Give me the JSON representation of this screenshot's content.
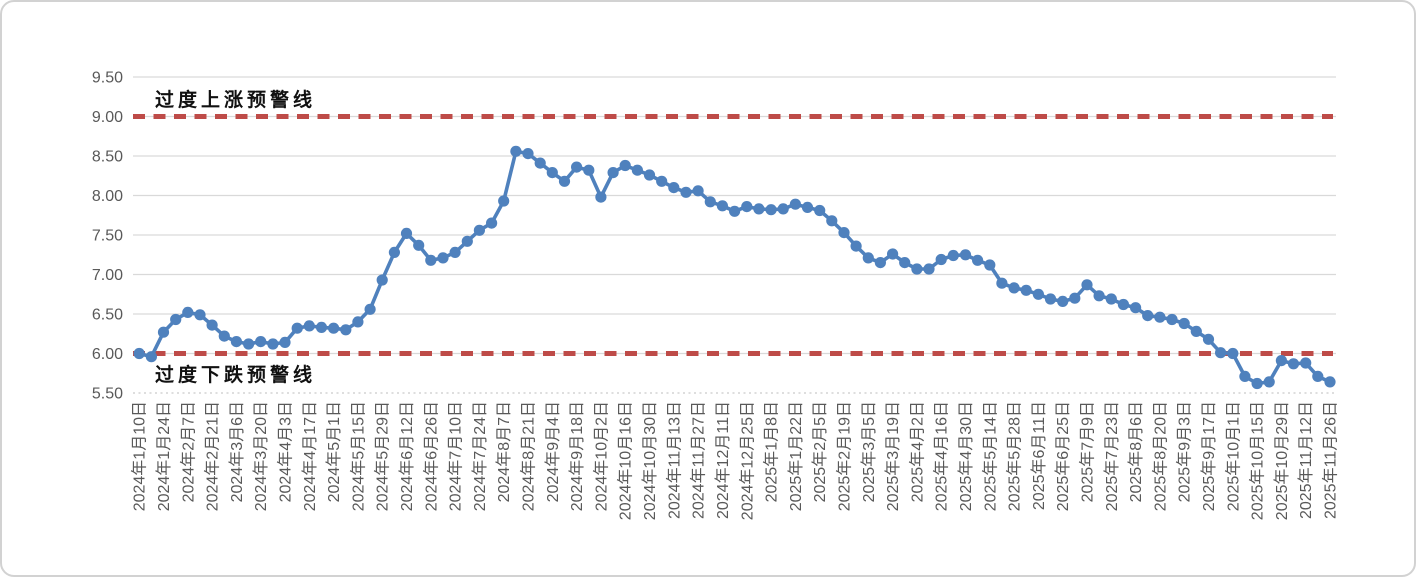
{
  "chart_data": {
    "type": "line",
    "title": "",
    "x_tick_labels": [
      "2024年1月10日",
      "2024年1月24日",
      "2024年2月7日",
      "2024年2月21日",
      "2024年3月6日",
      "2024年3月20日",
      "2024年4月3日",
      "2024年4月17日",
      "2024年5月1日",
      "2024年5月15日",
      "2024年5月29日",
      "2024年6月12日",
      "2024年6月26日",
      "2024年7月10日",
      "2024年7月24日",
      "2024年8月7日",
      "2024年8月21日",
      "2024年9月4日",
      "2024年9月18日",
      "2024年10月2日",
      "2024年10月16日",
      "2024年10月30日",
      "2024年11月13日",
      "2024年11月27日",
      "2024年12月11日",
      "2024年12月25日",
      "2025年1月8日",
      "2025年1月22日",
      "2025年2月5日",
      "2025年2月19日",
      "2025年3月5日",
      "2025年3月19日",
      "2025年4月2日",
      "2025年4月16日",
      "2025年4月30日",
      "2025年5月14日",
      "2025年5月28日",
      "2025年6月11日",
      "2025年6月25日",
      "2025年7月9日",
      "2025年7月23日",
      "2025年8月6日",
      "2025年8月20日",
      "2025年9月3日",
      "2025年9月17日",
      "2025年10月1日",
      "2025年10月15日",
      "2025年10月29日",
      "2025年11月12日",
      "2025年11月26日"
    ],
    "x_label_every_n_points": 2,
    "values": [
      6.0,
      5.96,
      6.27,
      6.43,
      6.52,
      6.49,
      6.36,
      6.22,
      6.15,
      6.12,
      6.15,
      6.12,
      6.14,
      6.32,
      6.35,
      6.33,
      6.32,
      6.3,
      6.4,
      6.56,
      6.93,
      7.28,
      7.52,
      7.37,
      7.18,
      7.21,
      7.28,
      7.42,
      7.56,
      7.65,
      7.93,
      8.56,
      8.53,
      8.41,
      8.29,
      8.18,
      8.36,
      8.32,
      7.98,
      8.29,
      8.38,
      8.32,
      8.26,
      8.18,
      8.1,
      8.04,
      8.06,
      7.92,
      7.87,
      7.8,
      7.86,
      7.83,
      7.82,
      7.83,
      7.89,
      7.85,
      7.81,
      7.68,
      7.53,
      7.36,
      7.21,
      7.15,
      7.26,
      7.15,
      7.07,
      7.07,
      7.19,
      7.24,
      7.25,
      7.18,
      7.12,
      6.89,
      6.83,
      6.8,
      6.75,
      6.69,
      6.66,
      6.7,
      6.87,
      6.73,
      6.69,
      6.62,
      6.58,
      6.48,
      6.46,
      6.43,
      6.38,
      6.28,
      6.18,
      6.01,
      6.0,
      5.71,
      5.62,
      5.64,
      5.91,
      5.87,
      5.88,
      5.71,
      5.64
    ],
    "ylim": [
      5.5,
      9.5
    ],
    "y_tick_labels": [
      "9.50",
      "9.00",
      "8.50",
      "8.00",
      "7.50",
      "7.00",
      "6.50",
      "6.00",
      "5.50"
    ],
    "annotations": [
      {
        "type": "upper_warning",
        "label": "过度上涨预警线",
        "y": 9.0
      },
      {
        "type": "lower_warning",
        "label": "过度下跌预警线",
        "y": 6.0
      }
    ],
    "grid": true,
    "legend": false,
    "colors": {
      "series": "#4F81BD",
      "warning_line": "#BE4B48",
      "gridline": "#D9D9D9",
      "bottom_dotted_gridline": "#C9C9C9",
      "tick_text": "#595959",
      "annotation_text": "#111111",
      "background": "#FFFFFF"
    }
  }
}
